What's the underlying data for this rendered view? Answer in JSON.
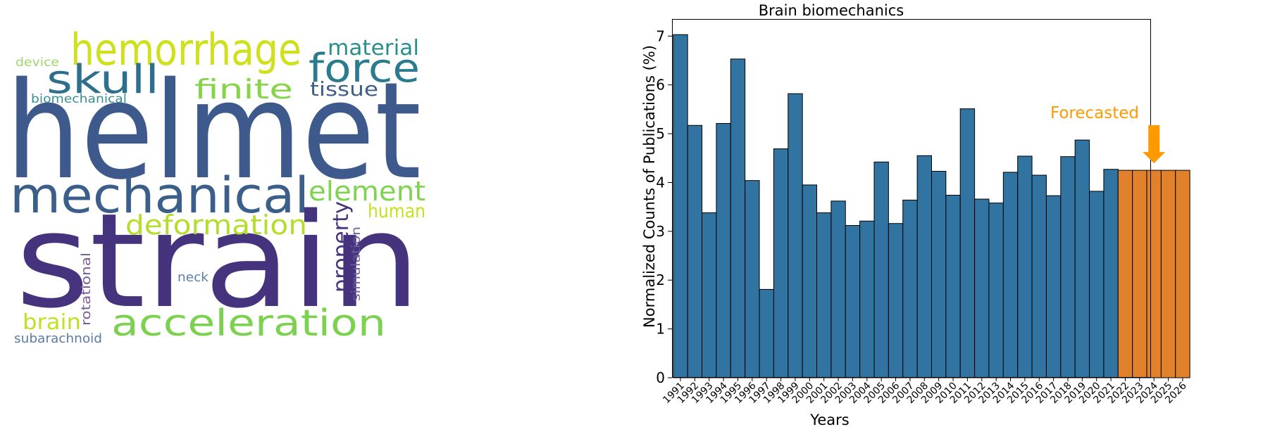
{
  "wordcloud": {
    "words": [
      {
        "text": "helmet",
        "color": "#3e5a8c"
      },
      {
        "text": "strain",
        "color": "#46337e"
      },
      {
        "text": "mechanical",
        "color": "#3b5f8a"
      },
      {
        "text": "hemorrhage",
        "color": "#cfe11c"
      },
      {
        "text": "skull",
        "color": "#2f6f8e"
      },
      {
        "text": "force",
        "color": "#2a7b8e"
      },
      {
        "text": "finite",
        "color": "#85d44a"
      },
      {
        "text": "material",
        "color": "#2a8e8c"
      },
      {
        "text": "tissue",
        "color": "#3e5f8b"
      },
      {
        "text": "element",
        "color": "#7ed34f"
      },
      {
        "text": "human",
        "color": "#c8e020"
      },
      {
        "text": "deformation",
        "color": "#b4de2c"
      },
      {
        "text": "acceleration",
        "color": "#7cd250"
      },
      {
        "text": "property",
        "color": "#46327e"
      },
      {
        "text": "simulation",
        "color": "#6d5b9c"
      },
      {
        "text": "rotational",
        "color": "#7a5c96"
      },
      {
        "text": "neck",
        "color": "#5b7fa8"
      },
      {
        "text": "brain",
        "color": "#c2df23"
      },
      {
        "text": "subarachnoid",
        "color": "#5a7aa6"
      },
      {
        "text": "device",
        "color": "#9fd56b"
      },
      {
        "text": "biomechanical",
        "color": "#3a8f95"
      }
    ]
  },
  "chart_data": {
    "type": "bar",
    "title": "Brain biomechanics",
    "xlabel": "Years",
    "ylabel": "Normalized Counts of Publications (%)",
    "ylim": [
      0,
      7.35
    ],
    "yticks": [
      0,
      1,
      2,
      3,
      4,
      5,
      6,
      7
    ],
    "categories": [
      "1991",
      "1992",
      "1993",
      "1994",
      "1995",
      "1996",
      "1997",
      "1998",
      "1999",
      "2000",
      "2001",
      "2002",
      "2003",
      "2004",
      "2005",
      "2006",
      "2007",
      "2008",
      "2009",
      "2010",
      "2011",
      "2012",
      "2013",
      "2014",
      "2015",
      "2016",
      "2017",
      "2018",
      "2019",
      "2020",
      "2021",
      "2022",
      "2023",
      "2024",
      "2025",
      "2026"
    ],
    "values": [
      7.03,
      5.17,
      3.38,
      5.21,
      6.53,
      4.04,
      1.81,
      4.69,
      5.82,
      3.95,
      3.38,
      3.62,
      3.12,
      3.21,
      4.42,
      3.16,
      3.64,
      4.55,
      4.23,
      3.74,
      5.51,
      3.66,
      3.58,
      4.21,
      4.54,
      4.15,
      3.73,
      4.53,
      4.87,
      3.82,
      4.27,
      4.25,
      4.25,
      4.25,
      4.25,
      4.25
    ],
    "forecast_from_index": 31,
    "colors": {
      "observed": "#3274a1",
      "forecast": "#e1812c",
      "annotation": "#ff9900"
    },
    "annotation": {
      "text": "Forecasted",
      "target_index": 33
    }
  }
}
